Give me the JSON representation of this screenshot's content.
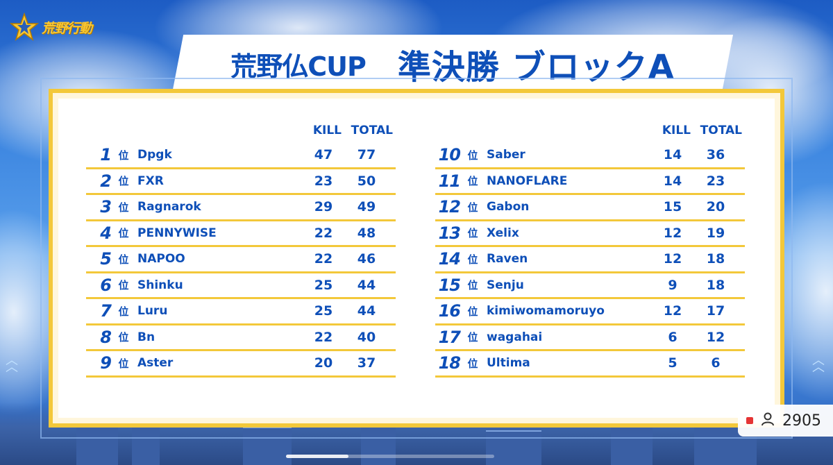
{
  "logo": {
    "text": "荒野行動"
  },
  "title": {
    "event": "荒野仏CUP",
    "stage": "準決勝 ブロックA"
  },
  "table": {
    "kill_header": "KILL",
    "total_header": "TOTAL",
    "rank_suffix": "位",
    "left": [
      {
        "rank": "1",
        "team": "Dpgk",
        "kill": "47",
        "total": "77"
      },
      {
        "rank": "2",
        "team": "FXR",
        "kill": "23",
        "total": "50"
      },
      {
        "rank": "3",
        "team": "Ragnarok",
        "kill": "29",
        "total": "49"
      },
      {
        "rank": "4",
        "team": "PENNYWISE",
        "kill": "22",
        "total": "48"
      },
      {
        "rank": "5",
        "team": "NAPOO",
        "kill": "22",
        "total": "46"
      },
      {
        "rank": "6",
        "team": "Shinku",
        "kill": "25",
        "total": "44"
      },
      {
        "rank": "7",
        "team": "Luru",
        "kill": "25",
        "total": "44"
      },
      {
        "rank": "8",
        "team": "Bn",
        "kill": "22",
        "total": "40"
      },
      {
        "rank": "9",
        "team": "Aster",
        "kill": "20",
        "total": "37"
      }
    ],
    "right": [
      {
        "rank": "10",
        "team": "Saber",
        "kill": "14",
        "total": "36"
      },
      {
        "rank": "11",
        "team": "NANOFLARE",
        "kill": "14",
        "total": "23"
      },
      {
        "rank": "12",
        "team": "Gabon",
        "kill": "15",
        "total": "20"
      },
      {
        "rank": "13",
        "team": "Xelix",
        "kill": "12",
        "total": "19"
      },
      {
        "rank": "14",
        "team": "Raven",
        "kill": "12",
        "total": "18"
      },
      {
        "rank": "15",
        "team": "Senju",
        "kill": "9",
        "total": "18"
      },
      {
        "rank": "16",
        "team": "kimiwomamoruyo",
        "kill": "12",
        "total": "17"
      },
      {
        "rank": "17",
        "team": "wagahai",
        "kill": "6",
        "total": "12"
      },
      {
        "rank": "18",
        "team": "Ultima",
        "kill": "5",
        "total": "6"
      }
    ]
  },
  "viewer": {
    "icon": "person-icon",
    "count": "2905"
  },
  "playback": {
    "progress": 0.3
  },
  "colors": {
    "accent": "#0e4fb8",
    "gold": "#f3c83a",
    "record": "#e53434"
  }
}
